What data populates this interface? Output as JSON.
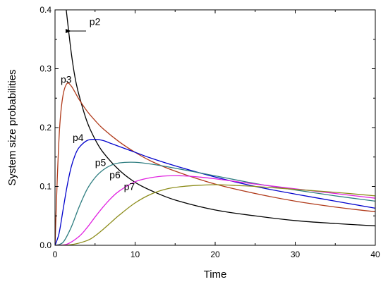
{
  "chart_data": {
    "type": "line",
    "title": "",
    "xlabel": "Time",
    "ylabel": "System size probabilities",
    "xlim": [
      0,
      40
    ],
    "ylim": [
      0,
      0.4
    ],
    "xticks": [
      0,
      10,
      20,
      30,
      40
    ],
    "yticks": [
      0.0,
      0.1,
      0.2,
      0.3,
      0.4
    ],
    "xtick_labels": [
      "0",
      "10",
      "20",
      "30",
      "40"
    ],
    "ytick_labels": [
      "0.0",
      "0.1",
      "0.2",
      "0.3",
      "0.4"
    ],
    "grid": false,
    "series": [
      {
        "name": "p2",
        "color": "#000000",
        "points": [
          [
            1.4,
            0.4
          ],
          [
            2,
            0.33
          ],
          [
            2.5,
            0.285
          ],
          [
            3,
            0.255
          ],
          [
            4,
            0.21
          ],
          [
            5,
            0.18
          ],
          [
            6,
            0.158
          ],
          [
            8,
            0.128
          ],
          [
            10,
            0.107
          ],
          [
            12,
            0.093
          ],
          [
            15,
            0.077
          ],
          [
            20,
            0.06
          ],
          [
            25,
            0.05
          ],
          [
            30,
            0.042
          ],
          [
            35,
            0.037
          ],
          [
            40,
            0.033
          ]
        ]
      },
      {
        "name": "p3",
        "color": "#b03a1a",
        "points": [
          [
            0,
            0
          ],
          [
            0.3,
            0.12
          ],
          [
            0.6,
            0.205
          ],
          [
            1,
            0.255
          ],
          [
            1.5,
            0.275
          ],
          [
            2,
            0.271
          ],
          [
            2.5,
            0.26
          ],
          [
            3,
            0.248
          ],
          [
            4,
            0.228
          ],
          [
            5,
            0.212
          ],
          [
            6,
            0.198
          ],
          [
            8,
            0.176
          ],
          [
            10,
            0.158
          ],
          [
            12,
            0.143
          ],
          [
            15,
            0.126
          ],
          [
            20,
            0.104
          ],
          [
            25,
            0.088
          ],
          [
            30,
            0.075
          ],
          [
            35,
            0.065
          ],
          [
            40,
            0.057
          ]
        ]
      },
      {
        "name": "p4",
        "color": "#0000cc",
        "points": [
          [
            0,
            0
          ],
          [
            0.5,
            0.02
          ],
          [
            1,
            0.06
          ],
          [
            1.5,
            0.1
          ],
          [
            2,
            0.132
          ],
          [
            2.5,
            0.153
          ],
          [
            3,
            0.166
          ],
          [
            4,
            0.178
          ],
          [
            5,
            0.18
          ],
          [
            6,
            0.178
          ],
          [
            7,
            0.173
          ],
          [
            8,
            0.168
          ],
          [
            10,
            0.158
          ],
          [
            12,
            0.148
          ],
          [
            15,
            0.135
          ],
          [
            20,
            0.116
          ],
          [
            25,
            0.1
          ],
          [
            30,
            0.087
          ],
          [
            35,
            0.075
          ],
          [
            40,
            0.063
          ]
        ]
      },
      {
        "name": "p5",
        "color": "#2e7d80",
        "points": [
          [
            0,
            0
          ],
          [
            1,
            0.005
          ],
          [
            2,
            0.03
          ],
          [
            3,
            0.065
          ],
          [
            4,
            0.095
          ],
          [
            5,
            0.115
          ],
          [
            6,
            0.128
          ],
          [
            7,
            0.136
          ],
          [
            8,
            0.14
          ],
          [
            10,
            0.141
          ],
          [
            12,
            0.138
          ],
          [
            15,
            0.131
          ],
          [
            20,
            0.118
          ],
          [
            25,
            0.105
          ],
          [
            30,
            0.094
          ],
          [
            35,
            0.084
          ],
          [
            40,
            0.075
          ]
        ]
      },
      {
        "name": "p6",
        "color": "#e020e0",
        "points": [
          [
            0,
            0
          ],
          [
            1.5,
            0.002
          ],
          [
            3,
            0.015
          ],
          [
            4,
            0.03
          ],
          [
            5,
            0.048
          ],
          [
            6,
            0.065
          ],
          [
            7,
            0.08
          ],
          [
            8,
            0.092
          ],
          [
            10,
            0.108
          ],
          [
            12,
            0.115
          ],
          [
            14,
            0.118
          ],
          [
            16,
            0.118
          ],
          [
            18,
            0.116
          ],
          [
            20,
            0.113
          ],
          [
            25,
            0.104
          ],
          [
            30,
            0.096
          ],
          [
            35,
            0.088
          ],
          [
            40,
            0.08
          ]
        ]
      },
      {
        "name": "p7",
        "color": "#8c8c1a",
        "points": [
          [
            0,
            0
          ],
          [
            2,
            0.001
          ],
          [
            4,
            0.008
          ],
          [
            5,
            0.016
          ],
          [
            6,
            0.027
          ],
          [
            7,
            0.039
          ],
          [
            8,
            0.051
          ],
          [
            10,
            0.072
          ],
          [
            12,
            0.087
          ],
          [
            14,
            0.096
          ],
          [
            16,
            0.1
          ],
          [
            18,
            0.102
          ],
          [
            20,
            0.103
          ],
          [
            22,
            0.102
          ],
          [
            25,
            0.1
          ],
          [
            30,
            0.095
          ],
          [
            35,
            0.09
          ],
          [
            40,
            0.084
          ]
        ]
      }
    ],
    "annotations": [
      {
        "text": "p2",
        "x": 4.3,
        "y": 0.38
      },
      {
        "text": "p3",
        "x": 0.7,
        "y": 0.282
      },
      {
        "text": "p4",
        "x": 2.2,
        "y": 0.183
      },
      {
        "text": "p5",
        "x": 5.0,
        "y": 0.141
      },
      {
        "text": "p6",
        "x": 6.8,
        "y": 0.12
      },
      {
        "text": "p7",
        "x": 8.6,
        "y": 0.1
      }
    ]
  }
}
